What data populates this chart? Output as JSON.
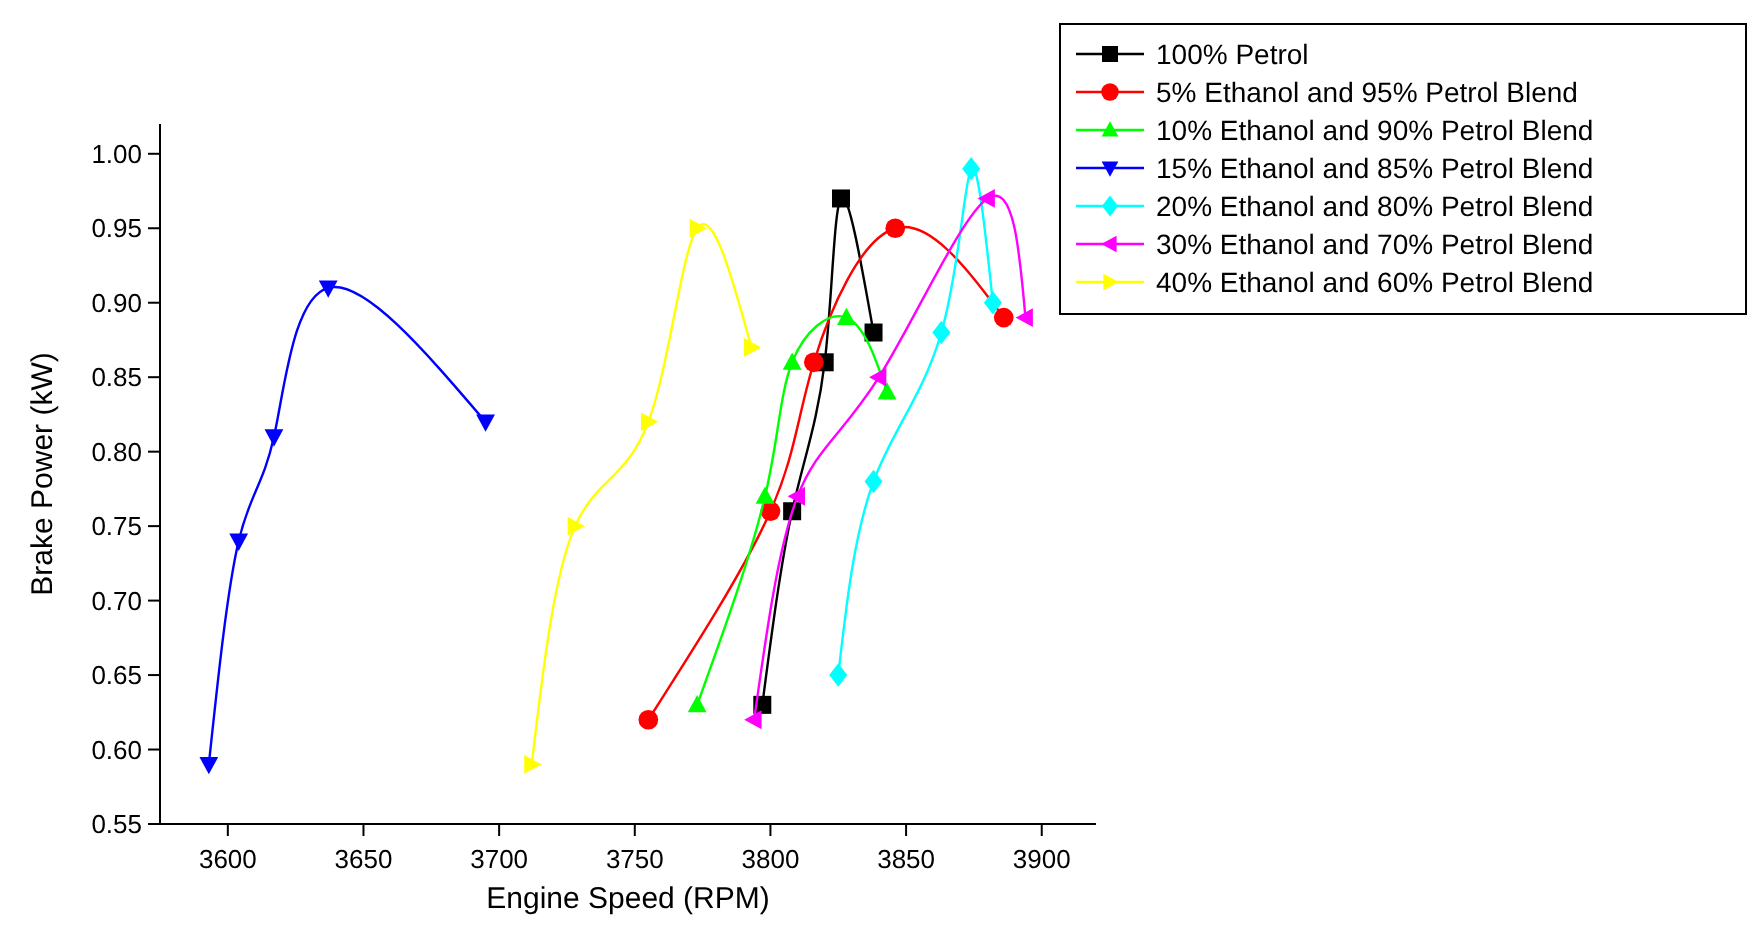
{
  "chart_data": {
    "type": "line",
    "xlabel": "Engine Speed (RPM)",
    "ylabel": "Brake Power (kW)",
    "xlim": [
      3575,
      3920
    ],
    "xticks": [
      3600,
      3650,
      3700,
      3750,
      3800,
      3850,
      3900
    ],
    "ylim": [
      0.55,
      1.02
    ],
    "yticks": [
      {
        "value": 0.55,
        "label": "0.55"
      },
      {
        "value": 0.6,
        "label": "0.60"
      },
      {
        "value": 0.65,
        "label": "0.65"
      },
      {
        "value": 0.7,
        "label": "0.70"
      },
      {
        "value": 0.75,
        "label": "0.75"
      },
      {
        "value": 0.8,
        "label": "0.80"
      },
      {
        "value": 0.85,
        "label": "0.85"
      },
      {
        "value": 0.9,
        "label": "0.90"
      },
      {
        "value": 0.95,
        "label": "0.95"
      },
      {
        "value": 1.0,
        "label": "1.00"
      }
    ],
    "grid": false,
    "legend": "top right",
    "series": [
      {
        "name": "100% Petrol",
        "color": "#000000",
        "marker": "square",
        "x": [
          3797,
          3808,
          3820,
          3826,
          3838
        ],
        "values": [
          0.63,
          0.76,
          0.86,
          0.97,
          0.88
        ]
      },
      {
        "name": "5% Ethanol and 95% Petrol Blend",
        "color": "#ff0000",
        "marker": "circle",
        "x": [
          3755,
          3800,
          3816,
          3846,
          3886
        ],
        "values": [
          0.62,
          0.76,
          0.86,
          0.95,
          0.89
        ]
      },
      {
        "name": "10% Ethanol and 90% Petrol Blend",
        "color": "#00ff00",
        "marker": "triangle",
        "x": [
          3773,
          3798,
          3808,
          3828,
          3843
        ],
        "values": [
          0.63,
          0.77,
          0.86,
          0.89,
          0.84
        ]
      },
      {
        "name": "15% Ethanol and 85% Petrol Blend",
        "color": "#0000ff",
        "marker": "triangle-down",
        "x": [
          3593,
          3604,
          3617,
          3637,
          3695
        ],
        "values": [
          0.59,
          0.74,
          0.81,
          0.91,
          0.82
        ]
      },
      {
        "name": "20% Ethanol and 80% Petrol Blend",
        "color": "#00ffff",
        "marker": "diamond",
        "x": [
          3825,
          3838,
          3863,
          3874,
          3882
        ],
        "values": [
          0.65,
          0.78,
          0.88,
          0.99,
          0.9
        ]
      },
      {
        "name": "30% Ethanol and 70% Petrol Blend",
        "color": "#ff00ff",
        "marker": "triangle-left",
        "x": [
          3794,
          3810,
          3840,
          3880,
          3894
        ],
        "values": [
          0.62,
          0.77,
          0.85,
          0.97,
          0.89
        ]
      },
      {
        "name": "40% Ethanol and 60% Petrol Blend",
        "color": "#ffff00",
        "marker": "triangle-right",
        "x": [
          3712,
          3728,
          3755,
          3773,
          3793
        ],
        "values": [
          0.59,
          0.75,
          0.82,
          0.95,
          0.87
        ]
      }
    ]
  }
}
